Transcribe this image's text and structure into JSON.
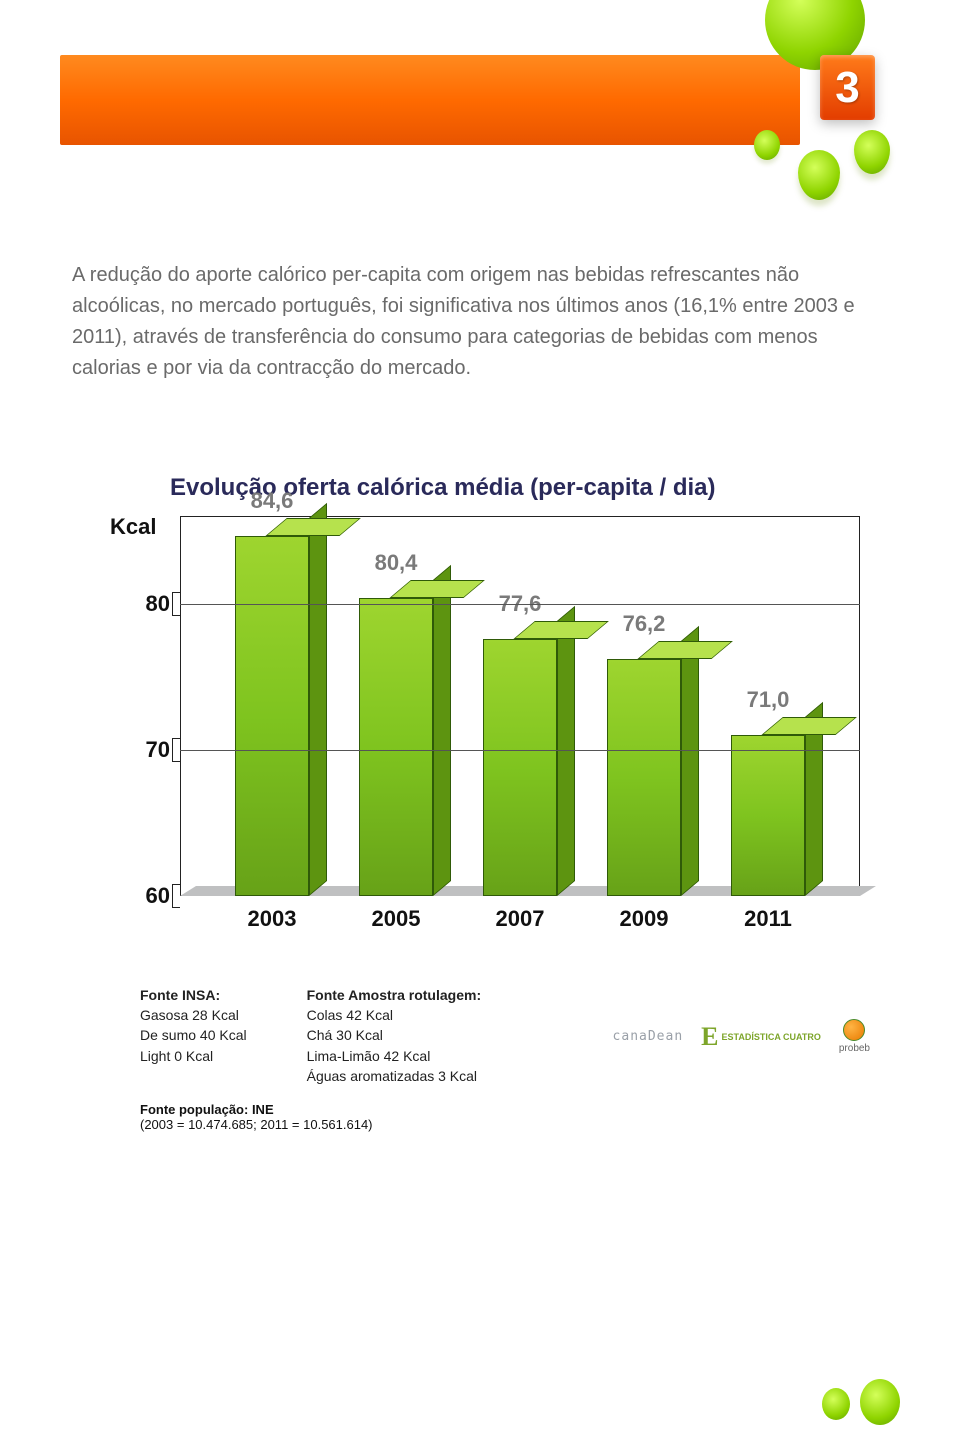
{
  "page_number": "3",
  "body_paragraph": "A redução do aporte calórico per-capita com origem nas bebidas refrescantes não alcoólicas, no mercado português, foi significativa nos últimos anos (16,1% entre 2003 e 2011), através de transferência do consumo para categorias de bebidas com menos calorias e por via da contracção do mercado.",
  "chart": {
    "type": "bar",
    "title": "Evolução oferta calórica média (per-capita / dia)",
    "ylabel": "Kcal",
    "ylim_min": 60,
    "ylim_max": 86,
    "yticks": [
      60,
      70,
      80
    ],
    "categories": [
      "2003",
      "2005",
      "2007",
      "2009",
      "2011"
    ],
    "values": [
      84.6,
      80.4,
      77.6,
      76.2,
      71.0
    ],
    "value_labels": [
      "84,6",
      "80,4",
      "77,6",
      "76,2",
      "71,0"
    ],
    "bar_fill_top": "#b6e24d",
    "bar_fill_front": "#8bc926",
    "bar_fill_side": "#5d9410",
    "bar_border": "#2f5a08",
    "grid_color": "#555555",
    "axis_color": "#222222",
    "value_label_color": "#7a7a7a",
    "title_color": "#2a2a5a",
    "background_color": "#ffffff",
    "title_fontsize": 24,
    "label_fontsize": 22
  },
  "sources": {
    "col1": {
      "heading": "Fonte INSA:",
      "lines": [
        "Gasosa 28 Kcal",
        "De sumo 40 Kcal",
        "Light 0 Kcal"
      ]
    },
    "col2": {
      "heading": "Fonte Amostra rotulagem:",
      "lines": [
        "Colas 42 Kcal",
        "Chá 30 Kcal",
        "Lima-Limão 42 Kcal",
        "Águas aromatizadas 3 Kcal"
      ]
    },
    "population": {
      "heading": "Fonte população: INE",
      "detail": "(2003 = 10.474.685; 2011 = 10.561.614)"
    }
  },
  "logos": {
    "canadean": "canaDean",
    "estadistica": "ESTADÍSTICA CUATRO",
    "probeb": "probeb"
  },
  "decor": {
    "orange_gradient_from": "#ff8a1f",
    "orange_gradient_to": "#e85400",
    "green_gradient_light": "#d4ff5a",
    "green_gradient_mid": "#8fd400",
    "green_gradient_dark": "#5fa000"
  }
}
